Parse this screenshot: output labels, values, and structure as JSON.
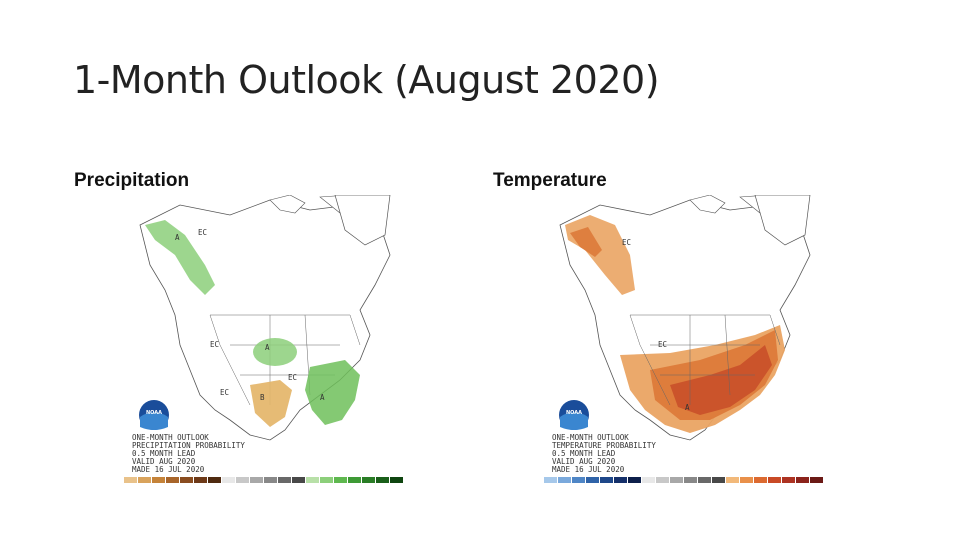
{
  "slide": {
    "title": "1-Month Outlook (August 2020)"
  },
  "panels": [
    {
      "label": "Precipitation",
      "logo_text": "NOAA",
      "info_lines": [
        "ONE-MONTH OUTLOOK",
        "PRECIPITATION PROBABILITY",
        "0.5 MONTH LEAD",
        "VALID AUG 2020",
        "MADE 16 JUL 2020"
      ],
      "region_labels": [
        "EC",
        "A",
        "EC",
        "A",
        "EC",
        "EC",
        "B",
        "A"
      ],
      "scale_colors": [
        "#e9c28a",
        "#d9a35c",
        "#c58339",
        "#a8652a",
        "#8a4d20",
        "#6e3a18",
        "#4f2a10",
        "#e8e8e8",
        "#c8c8c8",
        "#a8a8a8",
        "#888888",
        "#686868",
        "#484848",
        "#b8e0a8",
        "#8ccf7a",
        "#5fb84f",
        "#3e9a35",
        "#2a7d26",
        "#1a5f1a",
        "#0f4510"
      ],
      "colors": {
        "above": "#8ccf7a",
        "below": "#e3b466",
        "land": "#ffffff",
        "line": "#555555"
      }
    },
    {
      "label": "Temperature",
      "logo_text": "NOAA",
      "info_lines": [
        "ONE-MONTH OUTLOOK",
        "TEMPERATURE PROBABILITY",
        "0.5 MONTH LEAD",
        "VALID AUG 2020",
        "MADE 16 JUL 2020"
      ],
      "region_labels": [
        "EC",
        "EC",
        "A"
      ],
      "scale_colors": [
        "#a6c8ea",
        "#7aa9dc",
        "#4f86c6",
        "#2f63a8",
        "#1e4789",
        "#15306a",
        "#0d1f4a",
        "#e8e8e8",
        "#c8c8c8",
        "#a8a8a8",
        "#888888",
        "#686868",
        "#484848",
        "#f2b97a",
        "#e9904a",
        "#dc6a30",
        "#c94a26",
        "#ad3322",
        "#8c241c",
        "#6b1a16"
      ],
      "colors": {
        "above_light": "#eaa463",
        "above": "#dd7a3a",
        "above_strong": "#c9522a",
        "land": "#ffffff",
        "line": "#555555"
      }
    }
  ]
}
